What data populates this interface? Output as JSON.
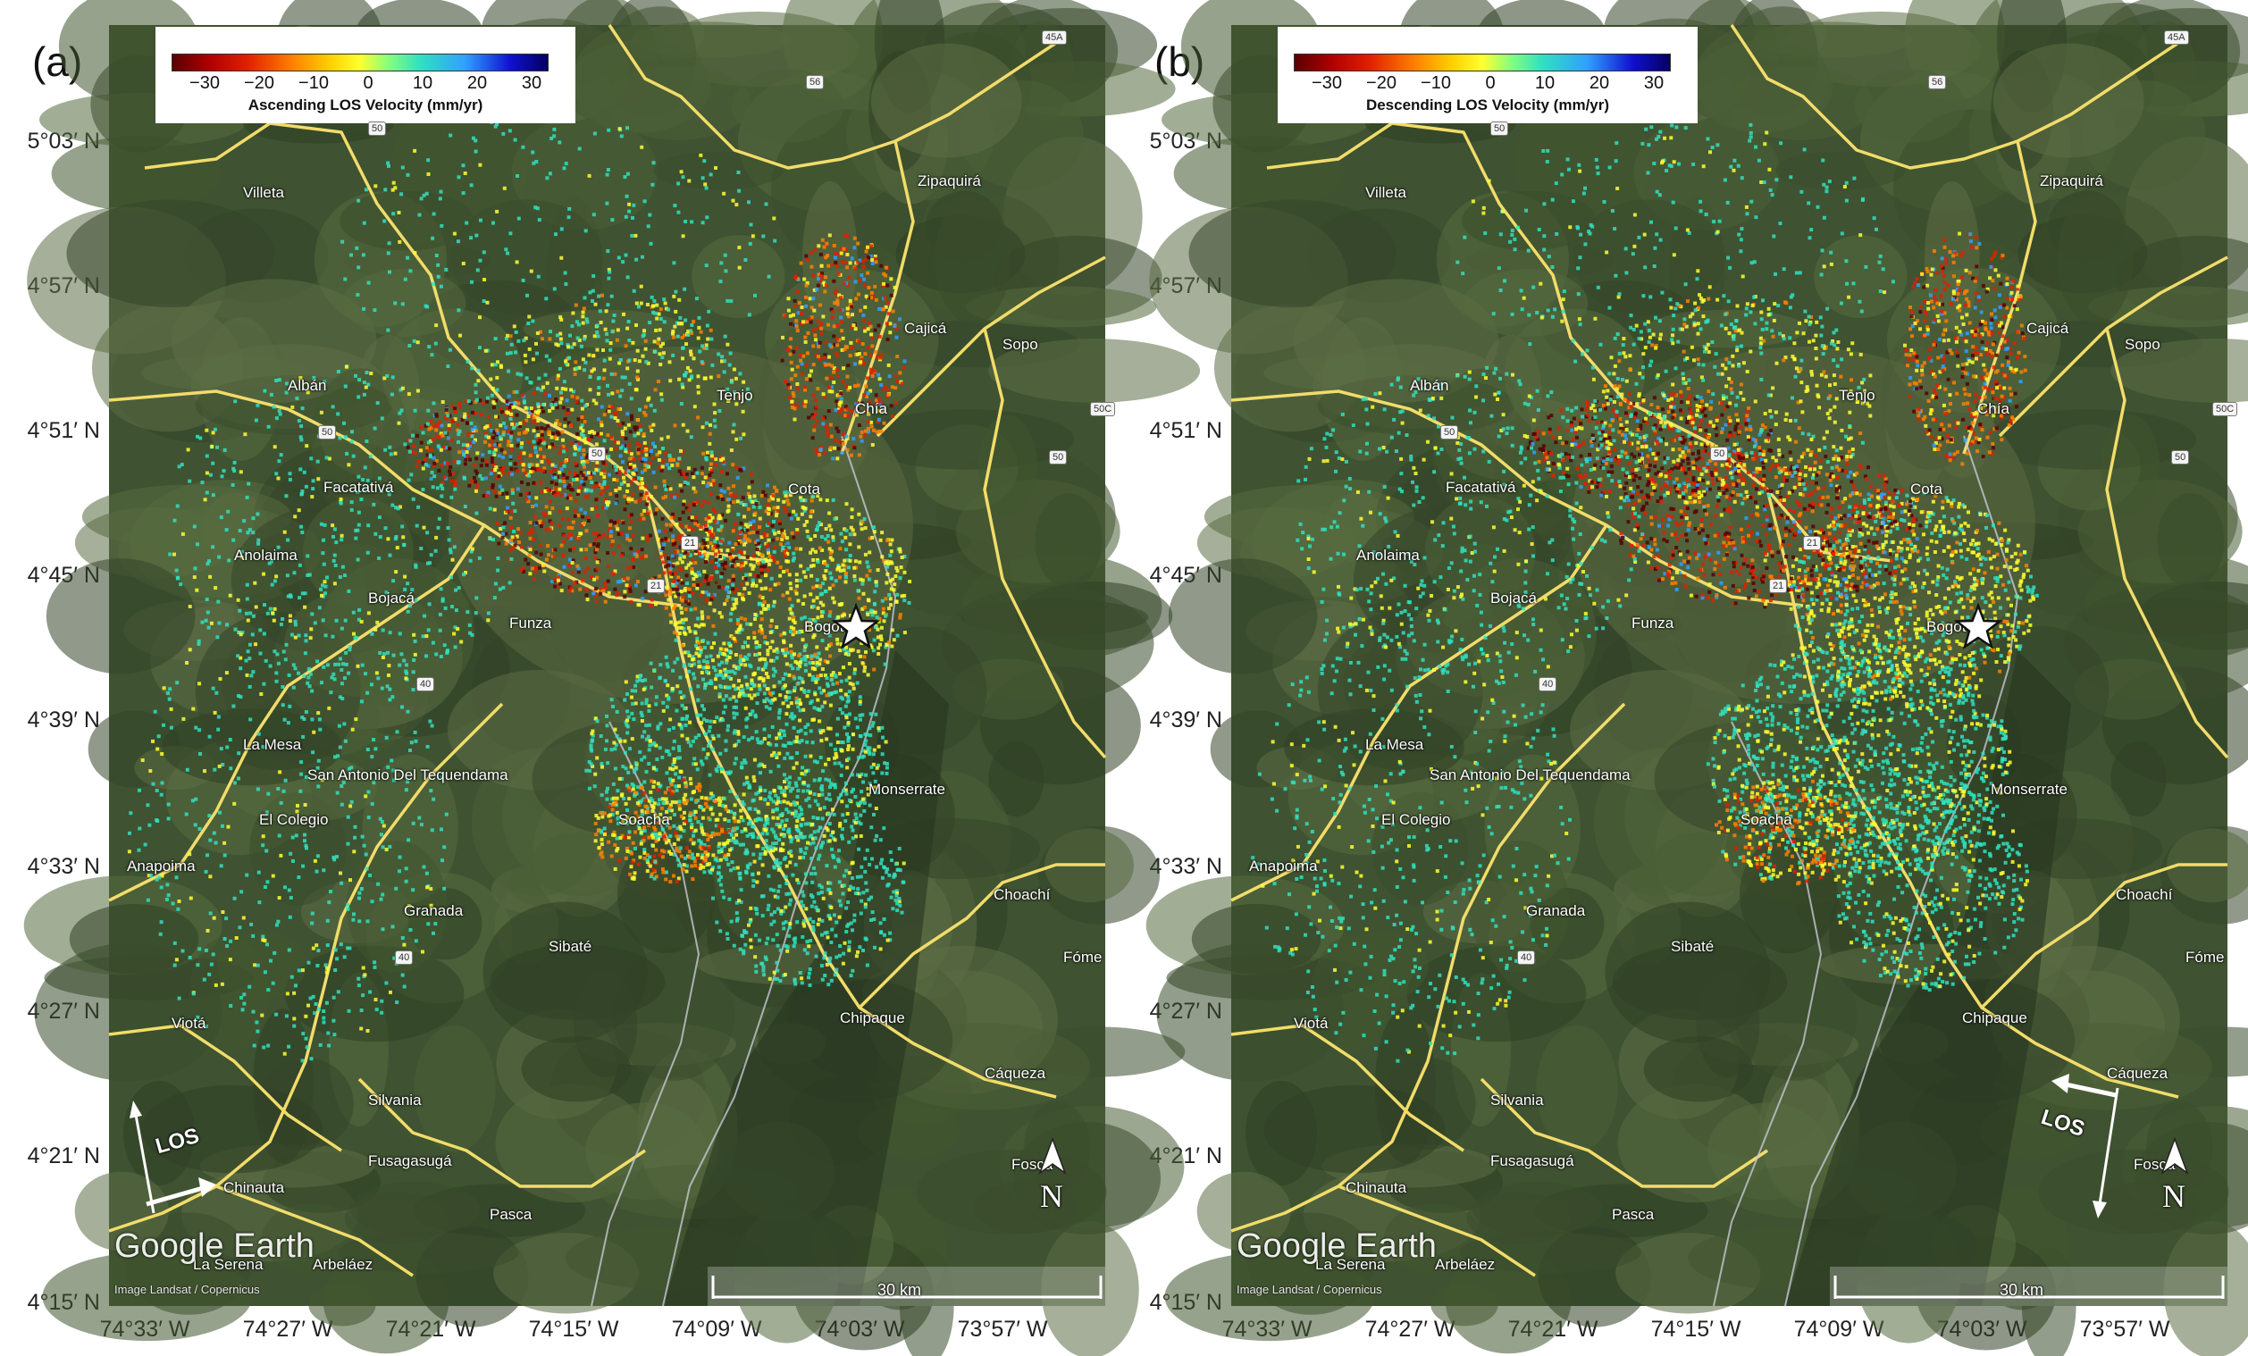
{
  "panels": [
    {
      "letter": "(a)",
      "colorbar": {
        "ticks": [
          "−30",
          "−20",
          "−10",
          "0",
          "10",
          "20",
          "30"
        ],
        "title": "Ascending LOS Velocity (mm/yr)",
        "range": [
          -35,
          35
        ],
        "colors": [
          "#5a0000",
          "#e02000",
          "#ff8000",
          "#ffff30",
          "#30e0c0",
          "#30a0ff",
          "#050060"
        ]
      },
      "los_label": "LOS",
      "orbit": "ascending"
    },
    {
      "letter": "(b)",
      "colorbar": {
        "ticks": [
          "−30",
          "−20",
          "−10",
          "0",
          "10",
          "20",
          "30"
        ],
        "title": "Descending LOS Velocity (mm/yr)",
        "range": [
          -35,
          35
        ],
        "colors": [
          "#5a0000",
          "#e02000",
          "#ff8000",
          "#ffff30",
          "#30e0c0",
          "#30a0ff",
          "#050060"
        ]
      },
      "los_label": "LOS",
      "orbit": "descending"
    }
  ],
  "lat_labels": [
    "5°03′ N",
    "4°57′ N",
    "4°51′ N",
    "4°45′ N",
    "4°39′ N",
    "4°33′ N",
    "4°27′ N",
    "4°21′ N",
    "4°15′ N"
  ],
  "lon_labels": [
    "74°33′ W",
    "74°27′ W",
    "74°21′ W",
    "74°15′ W",
    "74°09′ W",
    "74°03′ W",
    "73°57′ W"
  ],
  "places": {
    "villeta": "Villeta",
    "zipaquira": "Zipaquirá",
    "cajica": "Cajicá",
    "sopo": "Sopo",
    "alban": "Albán",
    "tenjo": "Tenjo",
    "chia": "Chía",
    "facatativa": "Facatativá",
    "cota": "Cota",
    "anolaima": "Anolaima",
    "bojaca": "Bojacá",
    "funza": "Funza",
    "bogota": "Bogotá",
    "la_mesa": "La Mesa",
    "san_antonio": "San Antonio Del Tequendama",
    "el_colegio": "El Colegio",
    "monserrate": "Monserrate",
    "soacha": "Soacha",
    "anapoima": "Anapoima",
    "choachi": "Choachí",
    "granada": "Granada",
    "sibate": "Sibaté",
    "fomeque": "Fóme",
    "viota": "Viotá",
    "chipaque": "Chipaque",
    "caqueza": "Cáqueza",
    "silvania": "Silvania",
    "fusagasuga": "Fusagasugá",
    "fosca": "Fosca",
    "chinauta": "Chinauta",
    "pasca": "Pasca",
    "la_serena": "La Serena",
    "arbelaez": "Arbeláez"
  },
  "road_shields": [
    "45A",
    "56",
    "50",
    "50",
    "50C",
    "50",
    "50",
    "21",
    "21",
    "40",
    "40"
  ],
  "north_label": "N",
  "logo": "Google Earth",
  "attribution": "Image Landsat / Copernicus",
  "scale_label": "30 km"
}
